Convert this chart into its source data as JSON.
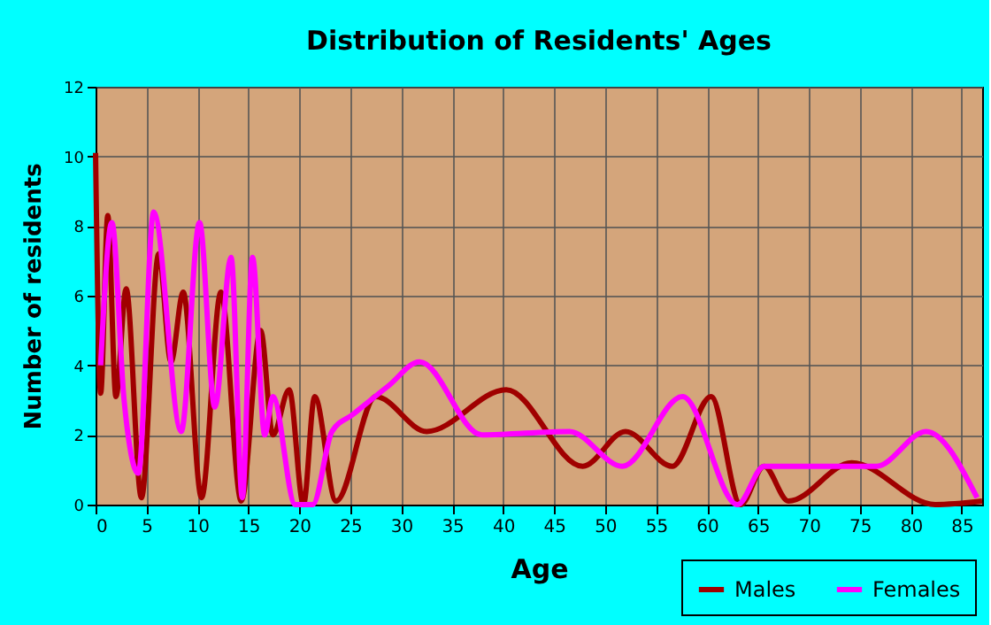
{
  "chart_data": {
    "type": "line",
    "title": "Distribution of Residents' Ages",
    "xlabel": "Age",
    "ylabel": "Number of residents",
    "xlim": [
      0,
      87
    ],
    "xticks": [
      0,
      5,
      10,
      15,
      20,
      25,
      30,
      35,
      40,
      45,
      50,
      55,
      60,
      65,
      70,
      75,
      80,
      85
    ],
    "ylim": [
      0,
      12
    ],
    "yticks": [
      0,
      2,
      4,
      6,
      8,
      10,
      12
    ],
    "grid": true,
    "legend": "bottom right",
    "marker": "none",
    "line_style": "solid",
    "series": [
      {
        "name": "Males",
        "color": "#a00000",
        "x": [
          0,
          0.5,
          1.2,
          2,
          3,
          4.5,
          6.2,
          7.4,
          8.6,
          10.4,
          12.3,
          14.3,
          16.2,
          17.4,
          19,
          20.4,
          21.5,
          23.6,
          27.5,
          32.5,
          40.3,
          47.8,
          52,
          56.6,
          60.4,
          63.3,
          65.6,
          68,
          74.2,
          82.4,
          87
        ],
        "values": [
          10.1,
          3.2,
          8.3,
          3.1,
          6.2,
          0.2,
          7.2,
          4.1,
          6.1,
          0.2,
          6.1,
          0.1,
          5,
          2,
          3.3,
          0,
          3.1,
          0.1,
          3.1,
          2.1,
          3.3,
          1.1,
          2.1,
          1.1,
          3.1,
          0,
          1.1,
          0.1,
          1.2,
          0,
          0.1
        ]
      },
      {
        "name": "Females",
        "color": "#ff00ff",
        "x": [
          0.5,
          1.6,
          2.8,
          4.2,
          5.7,
          8.4,
          10.2,
          11.7,
          13.3,
          14.4,
          15.4,
          16.6,
          17.4,
          19.6,
          21.3,
          23.2,
          25.3,
          28.7,
          31.8,
          37.9,
          46.5,
          51.7,
          57.6,
          63,
          65.6,
          76.6,
          81.5,
          86.5
        ],
        "values": [
          4,
          8.1,
          3,
          0.9,
          8.4,
          2.1,
          8.1,
          2.8,
          7.1,
          0.2,
          7.1,
          2,
          3.1,
          0,
          0,
          2.1,
          2.6,
          3.4,
          4.1,
          2,
          2.1,
          1.1,
          3.1,
          0,
          1.1,
          1.1,
          2.1,
          0.2
        ]
      }
    ]
  }
}
